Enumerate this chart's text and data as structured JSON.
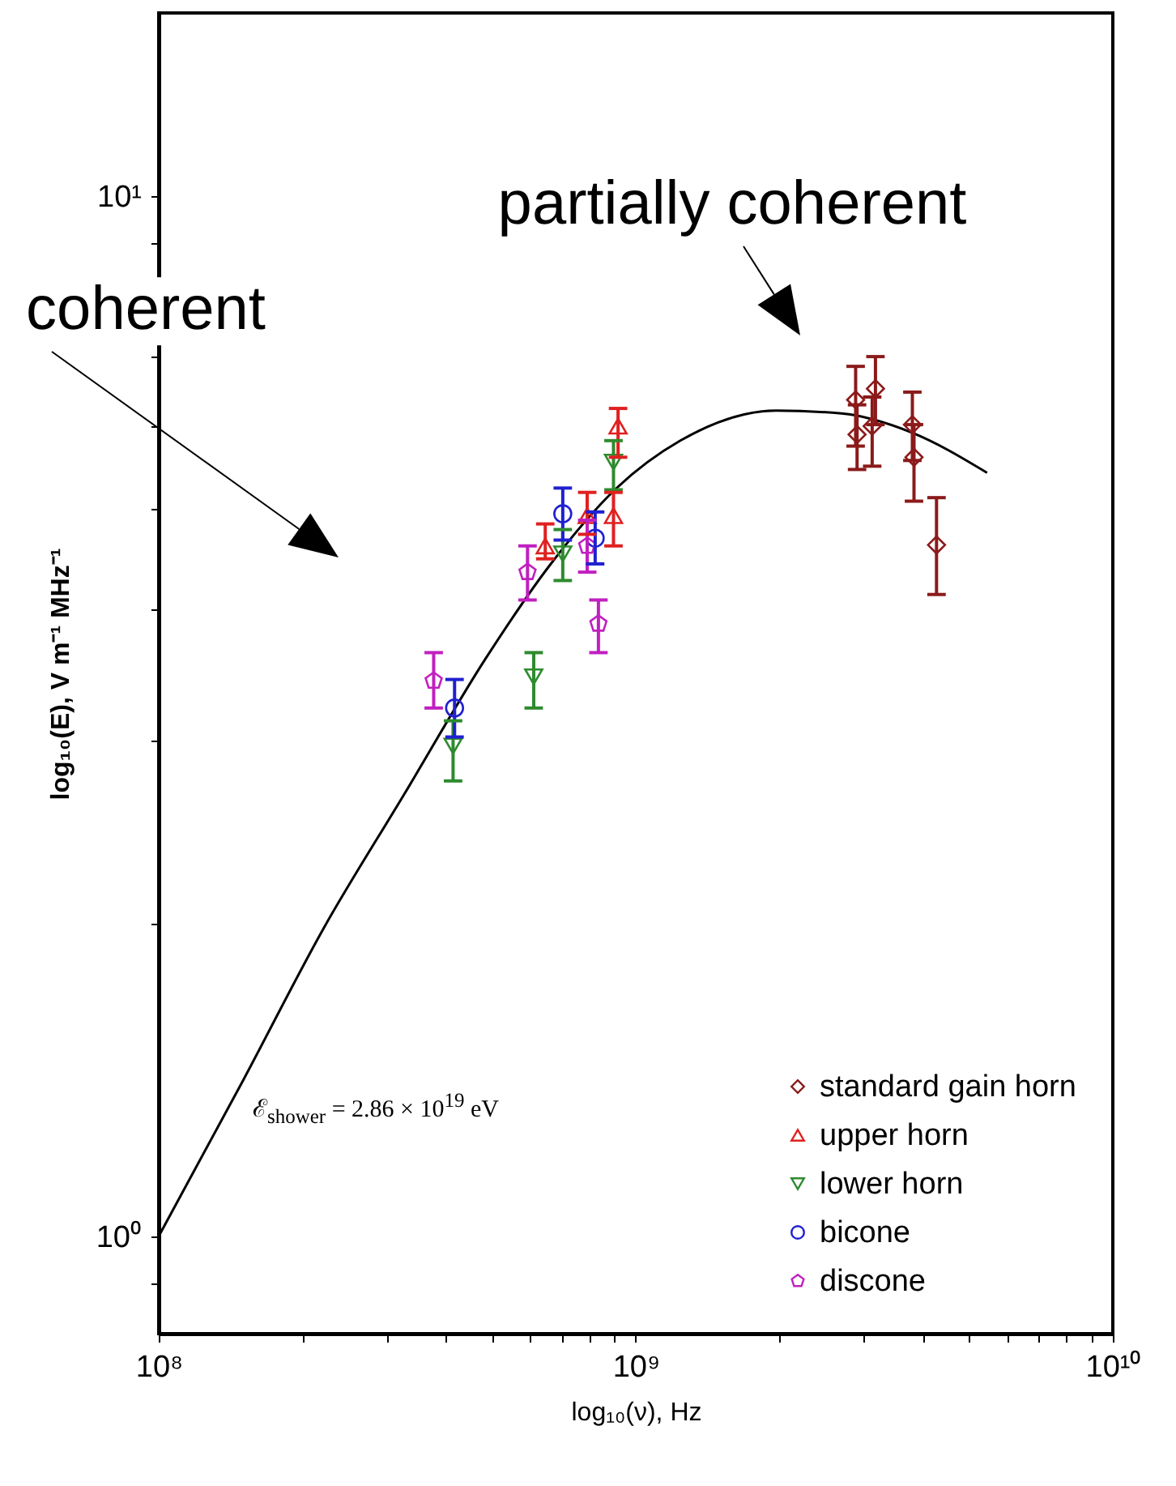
{
  "chart_data": {
    "type": "scatter",
    "xlabel": "log₁₀(ν), Hz",
    "ylabel": "log₁₀(E), V m⁻¹ MHz⁻¹",
    "log": "xy",
    "grid": false,
    "legend": "bottom right",
    "xlim": [
      100000000,
      10000000000
    ],
    "ylim": [
      0.806,
      15
    ],
    "xticks": [
      {
        "value": 100000000,
        "label": "10⁸"
      },
      {
        "value": 200000000,
        "label": null
      },
      {
        "value": 300000000,
        "label": null
      },
      {
        "value": 400000000,
        "label": null
      },
      {
        "value": 500000000,
        "label": null
      },
      {
        "value": 600000000,
        "label": null
      },
      {
        "value": 700000000,
        "label": null
      },
      {
        "value": 800000000,
        "label": null
      },
      {
        "value": 900000000,
        "label": null
      },
      {
        "value": 1000000000,
        "label": "10⁹"
      },
      {
        "value": 2000000000,
        "label": null
      },
      {
        "value": 3000000000,
        "label": null
      },
      {
        "value": 4000000000,
        "label": null
      },
      {
        "value": 5000000000,
        "label": null
      },
      {
        "value": 6000000000,
        "label": null
      },
      {
        "value": 7000000000,
        "label": null
      },
      {
        "value": 8000000000,
        "label": null
      },
      {
        "value": 9000000000,
        "label": null
      },
      {
        "value": 10000000000,
        "label": "10¹⁰"
      }
    ],
    "yticks": [
      {
        "value": 0.9,
        "label": null
      },
      {
        "value": 1,
        "label": "10⁰"
      },
      {
        "value": 2,
        "label": null
      },
      {
        "value": 3,
        "label": null
      },
      {
        "value": 4,
        "label": null
      },
      {
        "value": 5,
        "label": null
      },
      {
        "value": 6,
        "label": null
      },
      {
        "value": 7,
        "label": null
      },
      {
        "value": 8,
        "label": null
      },
      {
        "value": 9,
        "label": null
      },
      {
        "value": 10,
        "label": "10¹"
      }
    ],
    "series": [
      {
        "type": "line",
        "color": "#000000",
        "x": [
          100000000,
          150000000,
          222000000,
          327000000,
          484000000,
          661000000,
          904000000,
          1240000000,
          1970000000,
          2700000000,
          3770000000,
          5450000000
        ],
        "values": [
          1.0,
          1.41,
          1.98,
          2.66,
          3.59,
          4.42,
          5.22,
          5.82,
          6.22,
          6.18,
          5.93,
          5.42
        ]
      },
      {
        "name": "standard gain horn",
        "color": "#8b1a1a",
        "marker": "diamond",
        "x": [
          2890000000,
          2910000000,
          3180000000,
          3130000000,
          3800000000,
          3830000000,
          4270000000
        ],
        "values": [
          6.37,
          5.9,
          6.53,
          6.01,
          6.03,
          5.61,
          4.62
        ],
        "errors": [
          [
            5.75,
            6.86
          ],
          [
            5.46,
            6.3
          ],
          [
            6.03,
            7.01
          ],
          [
            5.5,
            6.41
          ],
          [
            5.57,
            6.48
          ],
          [
            5.09,
            6.03
          ],
          [
            4.14,
            5.13
          ]
        ]
      },
      {
        "name": "upper horn",
        "color": "#e02020",
        "marker": "triangle",
        "x": [
          646000000,
          791000000,
          898000000,
          918000000
        ],
        "values": [
          4.61,
          4.93,
          4.93,
          6.01
        ],
        "errors": [
          [
            4.48,
            4.84
          ],
          [
            4.73,
            5.19
          ],
          [
            4.61,
            5.19
          ],
          [
            5.61,
            6.25
          ]
        ]
      },
      {
        "name": "lower horn",
        "color": "#2e8b2e",
        "marker": "triangle-down",
        "x": [
          414000000,
          611000000,
          703000000,
          898000000
        ],
        "values": [
          2.96,
          3.45,
          4.53,
          5.55
        ],
        "errors": [
          [
            2.74,
            3.13
          ],
          [
            3.22,
            3.64
          ],
          [
            4.27,
            4.78
          ],
          [
            5.22,
            5.82
          ]
        ]
      },
      {
        "name": "bicone",
        "color": "#2020d0",
        "marker": "circle",
        "x": [
          417000000,
          703000000,
          822000000
        ],
        "values": [
          3.22,
          4.95,
          4.69
        ],
        "errors": [
          [
            3.02,
            3.43
          ],
          [
            4.67,
            5.24
          ],
          [
            4.43,
            4.97
          ]
        ]
      },
      {
        "name": "discone",
        "color": "#c020c0",
        "x": [
          377000000,
          593000000,
          791000000,
          835000000
        ],
        "values": [
          3.42,
          4.35,
          4.61,
          3.88
        ],
        "errors": [
          [
            3.22,
            3.64
          ],
          [
            4.09,
            4.61
          ],
          [
            4.35,
            4.88
          ],
          [
            3.64,
            4.09
          ]
        ]
      }
    ],
    "annotations": [
      "coherent",
      "partially coherent",
      "ℰ$_{shower}$ = 2.86 × 10$^{19}$ eV"
    ]
  }
}
